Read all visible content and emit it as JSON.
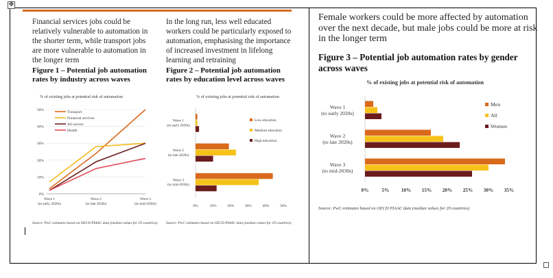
{
  "left_panel": {
    "intro1": "Financial services jobs could be relatively vulnerable to automation in the shorter term, while transport jobs are more vulnerable to automation in the longer term",
    "intro2": "In the long run, less well educated workers could be particularly exposed to automation, emphasising the importance of increased investment in lifelong learning and retraining"
  },
  "right_panel": {
    "headline": "Female workers could be more affected by automation over the next decade, but male jobs could be more at risk in the longer term"
  },
  "chart_data": [
    {
      "type": "line",
      "title": "Figure 1 – Potential job automation rates by industry across waves",
      "unit_label": "% of existing jobs at potential risk of automation",
      "categories": [
        "Wave 1|(to early 2020s)",
        "Wave 2|(to late 2020s)",
        "Wave 3|(to mid-2030s)"
      ],
      "ylim": [
        0,
        50
      ],
      "yticks": [
        "0%",
        "10%",
        "20%",
        "30%",
        "40%",
        "50%"
      ],
      "series": [
        {
          "name": "Transport",
          "color": "#d96a1c",
          "values": [
            3,
            24,
            50
          ]
        },
        {
          "name": "Financial services",
          "color": "#f6b81a",
          "values": [
            7,
            28,
            30
          ]
        },
        {
          "name": "All sectors",
          "color": "#6b1c1c",
          "values": [
            2,
            19,
            30
          ]
        },
        {
          "name": "Health",
          "color": "#e24a5a",
          "values": [
            2,
            15,
            21
          ]
        }
      ],
      "legend_position": "top-left",
      "source": "Source: PwC estimates based on OECD PIAAC data (median values for 29 countries)"
    },
    {
      "type": "bar",
      "orientation": "horizontal",
      "title": "Figure 2 – Potential job automation rates  by education level across waves",
      "unit_label": "% of existing jobs at potential risk of automation",
      "categories": [
        "Wave 1|(to early 2020s)",
        "Wave 2|(to late 2020s)",
        "Wave 3|(to mid-2030s)"
      ],
      "xlim": [
        0,
        50
      ],
      "xticks": [
        "0%",
        "10%",
        "20%",
        "30%",
        "40%",
        "50%"
      ],
      "series": [
        {
          "name": "Low education",
          "color": "#d96a1c",
          "values": [
            1,
            19,
            44
          ]
        },
        {
          "name": "Medium education",
          "color": "#f6c21a",
          "values": [
            1,
            23,
            36
          ]
        },
        {
          "name": "High education",
          "color": "#6b1c1c",
          "values": [
            2,
            10,
            12
          ]
        }
      ],
      "legend_position": "right",
      "source": "Source: PwC estimates based on OECD PIAAC data (median values for 29 countries)"
    },
    {
      "type": "bar",
      "orientation": "horizontal",
      "title": "Figure 3 – Potential job automation rates by gender across waves",
      "unit_label": "% of existing jobs at potential risk of automation",
      "categories": [
        "Wave 1|(to early 2020s)",
        "Wave 2|(to late 2020s)",
        "Wave 3|(to mid-2030s)"
      ],
      "xlim": [
        0,
        35
      ],
      "xticks": [
        "0%",
        "5%",
        "10%",
        "15%",
        "20%",
        "25%",
        "30%",
        "35%"
      ],
      "series": [
        {
          "name": "Men",
          "color": "#d96a1c",
          "values": [
            2,
            16,
            34
          ]
        },
        {
          "name": "All",
          "color": "#f6c21a",
          "values": [
            3,
            19,
            30
          ]
        },
        {
          "name": "Women",
          "color": "#6b1c1c",
          "values": [
            4,
            23,
            26
          ]
        }
      ],
      "legend_position": "right",
      "source": "Source: PwC estimates based on OECD PIAAC data (median values for 29 countries)"
    }
  ]
}
